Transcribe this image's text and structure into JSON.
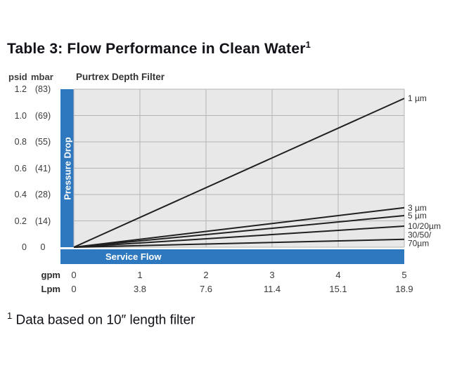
{
  "title": "Table 3: Flow Performance in Clean Water",
  "title_superscript": "1",
  "chart_header": {
    "psid_label": "psid",
    "mbar_label": "mbar",
    "chart_title": "Purtrex Depth Filter"
  },
  "y_axis": {
    "label": "Pressure Drop",
    "ticks": [
      {
        "psid": "1.2",
        "mbar": "(83)"
      },
      {
        "psid": "1.0",
        "mbar": "(69)"
      },
      {
        "psid": "0.8",
        "mbar": "(55)"
      },
      {
        "psid": "0.6",
        "mbar": "(41)"
      },
      {
        "psid": "0.4",
        "mbar": "(28)"
      },
      {
        "psid": "0.2",
        "mbar": "(14)"
      },
      {
        "psid": "0",
        "mbar": "0"
      }
    ]
  },
  "x_axis": {
    "label": "Service Flow",
    "gpm_label": "gpm",
    "lpm_label": "Lpm",
    "gpm_ticks": [
      "0",
      "1",
      "2",
      "3",
      "4",
      "5"
    ],
    "lpm_ticks": [
      "0",
      "3.8",
      "7.6",
      "11.4",
      "15.1",
      "18.9"
    ]
  },
  "footnote": {
    "superscript": "1",
    "text": " Data based on 10″ length filter"
  },
  "colors": {
    "accent_blue": "#2e78bf",
    "plot_background": "#e8e8e8",
    "grid": "#b5b5b5",
    "line": "#202020"
  },
  "chart_data": {
    "type": "line",
    "title": "Purtrex Depth Filter",
    "xlabel": "Service Flow",
    "ylabel": "Pressure Drop",
    "xlim": [
      0,
      5
    ],
    "ylim": [
      0,
      1.2
    ],
    "x_units": [
      "gpm",
      "Lpm"
    ],
    "y_units": [
      "psid",
      "mbar"
    ],
    "x_gpm": [
      0,
      1,
      2,
      3,
      4,
      5
    ],
    "x_lpm": [
      0,
      3.8,
      7.6,
      11.4,
      15.1,
      18.9
    ],
    "grid": true,
    "legend_position": "right-of-line-ends",
    "series": [
      {
        "name": "1 µm",
        "label_lines": [
          "1 µm"
        ],
        "x": [
          0,
          5
        ],
        "y": [
          0,
          1.13
        ]
      },
      {
        "name": "3 µm",
        "label_lines": [
          "3 µm"
        ],
        "x": [
          0,
          5
        ],
        "y": [
          0,
          0.3
        ]
      },
      {
        "name": "5 µm",
        "label_lines": [
          "5 µm"
        ],
        "x": [
          0,
          5
        ],
        "y": [
          0,
          0.24
        ]
      },
      {
        "name": "10/20µm",
        "label_lines": [
          "10/20µm"
        ],
        "x": [
          0,
          5
        ],
        "y": [
          0,
          0.16
        ]
      },
      {
        "name": "30/50/70µm",
        "label_lines": [
          "30/50/",
          "70µm"
        ],
        "x": [
          0,
          5
        ],
        "y": [
          0,
          0.06
        ]
      }
    ]
  }
}
